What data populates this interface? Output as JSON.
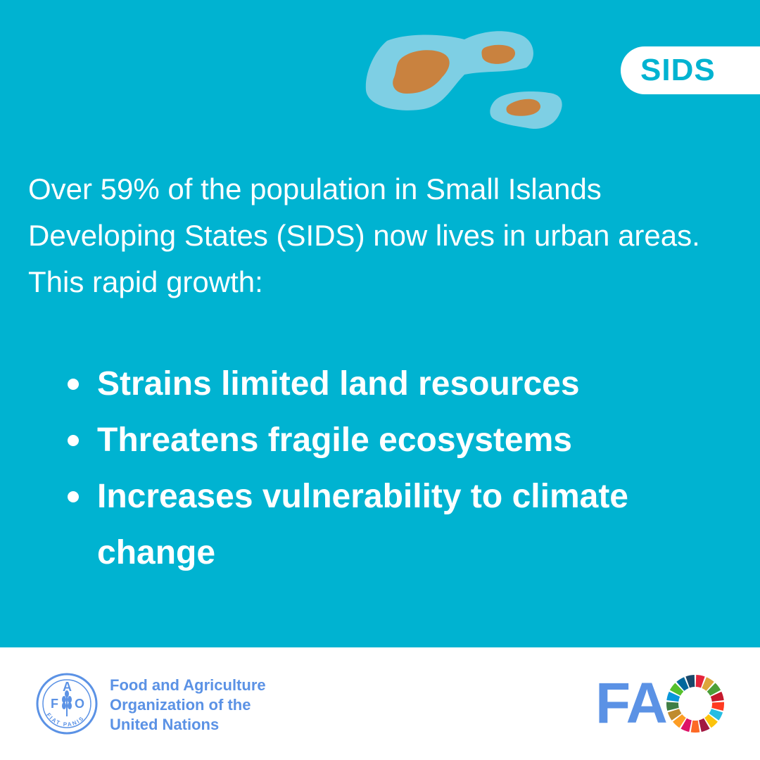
{
  "tag": {
    "label": "SIDS"
  },
  "intro": {
    "text": "Over 59% of the population in Small Islands Developing States (SIDS) now lives in urban areas. This rapid growth:"
  },
  "bullets": [
    {
      "text": "Strains limited land resources"
    },
    {
      "text": "Threatens fragile ecosystems"
    },
    {
      "text": "Increases vulnerability to climate change"
    }
  ],
  "footer": {
    "org_lines": [
      "Food and Agriculture",
      "Organization of the",
      "United Nations"
    ],
    "emblem_letters": [
      "F",
      "A",
      "O"
    ],
    "emblem_motto": "FIAT PANIS",
    "brand": "FA"
  },
  "colors": {
    "panel": "#00b3d1",
    "island_shallow": "#7ecfe4",
    "island_land": "#c9823f",
    "fao_blue": "#5b92e5",
    "sdg": [
      "#e5243b",
      "#dda63a",
      "#4c9f38",
      "#c5192d",
      "#ff3a21",
      "#26bde2",
      "#fcc30b",
      "#a21942",
      "#fd6925",
      "#dd1367",
      "#fd9d24",
      "#bf8b2e",
      "#3f7e44",
      "#0a97d9",
      "#56c02b",
      "#00689d",
      "#19486a"
    ]
  },
  "icons": {
    "islands": "islands-illustration",
    "emblem": "fao-emblem",
    "wheel": "sdg-wheel-icon"
  }
}
